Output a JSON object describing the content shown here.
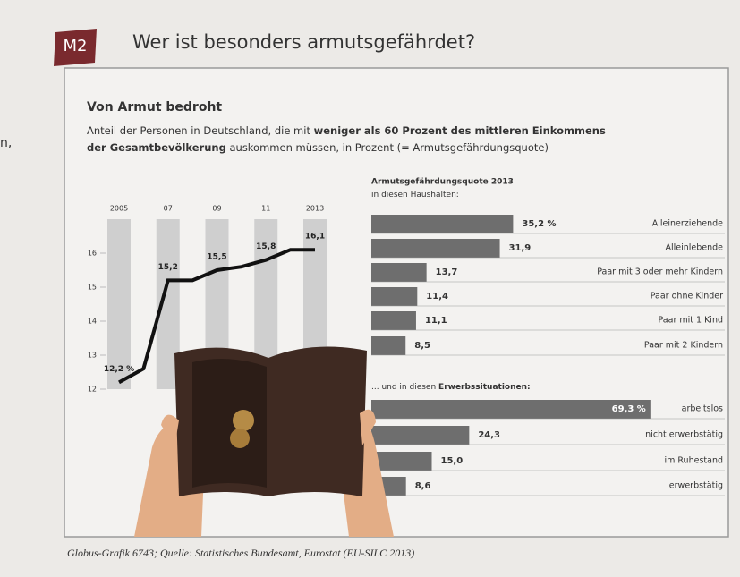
{
  "header": {
    "badge": "M2",
    "title": "Wer ist besonders armutsgefährdet?",
    "margin_text": "n,"
  },
  "infographic": {
    "title": "Von Armut bedroht",
    "subtitle": [
      [
        {
          "text": "Anteil der Personen in Deutschland, die mit ",
          "bold": false
        },
        {
          "text": "weniger als 60 Prozent des mittleren Einkommens",
          "bold": true
        }
      ],
      [
        {
          "text": "der Gesamtbevölkerung",
          "bold": true
        },
        {
          "text": " auskommen müssen, in Prozent (= Armutsgefährdungsquote)",
          "bold": false
        }
      ]
    ],
    "source": "Globus-Grafik 6743; Quelle: Statistisches Bundesamt, Eurostat (EU-SILC 2013)"
  },
  "chart_data": [
    {
      "type": "line",
      "x": [
        2005,
        2006,
        2007,
        2008,
        2009,
        2010,
        2011,
        2012,
        2013
      ],
      "xlim": [
        2005,
        2013
      ],
      "xticks": [
        2005,
        {
          "value": 2007,
          "label": "07"
        },
        {
          "value": 2009,
          "label": "09"
        },
        {
          "value": 2011,
          "label": "11"
        },
        2013
      ],
      "ylim": [
        12,
        17
      ],
      "yticks": [
        12,
        13,
        14,
        15,
        16
      ],
      "series": [
        {
          "color": "#111111",
          "values": [
            12.2,
            12.6,
            15.2,
            15.2,
            15.5,
            15.6,
            15.8,
            16.1,
            16.1
          ],
          "value_labels": [
            "12,2 %",
            null,
            "15,2",
            null,
            "15,5",
            null,
            "15,8",
            null,
            "16,1"
          ]
        }
      ]
    },
    {
      "type": "bar",
      "orientation": "horizontal",
      "title": "Armutsgefährdungsquote 2013",
      "subtitle": [
        {
          "text": "in diesen Haushalten:",
          "bold": false
        }
      ],
      "categories": [
        "Alleinerziehende",
        "Alleinlebende",
        "Paar mit 3 oder mehr Kindern",
        "Paar ohne Kinder",
        "Paar mit 1 Kind",
        "Paar mit 2 Kindern"
      ],
      "values": [
        35.2,
        31.9,
        13.7,
        11.4,
        11.1,
        8.5
      ],
      "value_labels": [
        "35,2 %",
        "31,9",
        "13,7",
        "11,4",
        "11,1",
        "8,5"
      ],
      "color": "#6e6e6e"
    },
    {
      "type": "bar",
      "orientation": "horizontal",
      "subtitle": [
        {
          "text": "... und in diesen ",
          "bold": false
        },
        {
          "text": "Erwerbssituationen:",
          "bold": true
        }
      ],
      "categories": [
        "arbeitslos",
        "nicht erwerbstätig",
        "im Ruhestand",
        "erwerbstätig"
      ],
      "values": [
        69.3,
        24.3,
        15.0,
        8.6
      ],
      "value_labels": [
        "69,3 %",
        "24,3",
        "15,0",
        "8,6"
      ],
      "color": "#6e6e6e"
    }
  ]
}
